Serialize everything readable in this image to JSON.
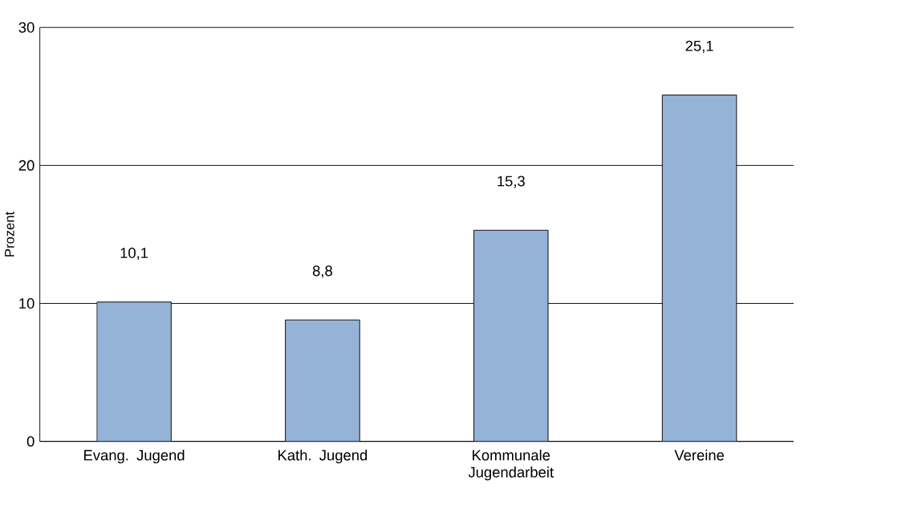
{
  "chart_data": {
    "type": "bar",
    "ylabel": "Prozent",
    "categories": [
      "Evang. Jugend",
      "Kath. Jugend",
      "Kommunale Jugendarbeit",
      "Vereine"
    ],
    "values": [
      10.1,
      8.8,
      15.3,
      25.1
    ],
    "value_labels": [
      "10,1",
      "8,8",
      "15,3",
      "25,1"
    ],
    "color": "#95b3d7",
    "ylim": [
      0,
      30
    ],
    "yticks": [
      0,
      10,
      20,
      30
    ],
    "grid": "y"
  }
}
